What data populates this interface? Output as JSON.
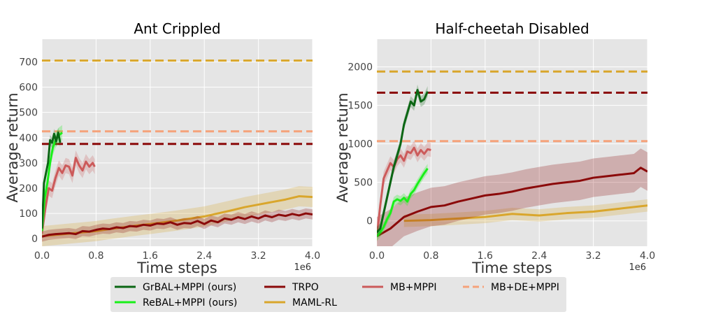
{
  "legend": {
    "entries": [
      {
        "label": "GrBAL+MPPI (ours)",
        "color": "#0b6614",
        "dash": false
      },
      {
        "label": "ReBAL+MPPI (ours)",
        "color": "#19f019",
        "dash": false
      },
      {
        "label": "TRPO",
        "color": "#8b0a0a",
        "dash": false
      },
      {
        "label": "MAML-RL",
        "color": "#d9a62c",
        "dash": false
      },
      {
        "label": "MB+MPPI",
        "color": "#cc5a5a",
        "dash": false
      },
      {
        "label": "MB+DE+MPPI",
        "color": "#f5a27a",
        "dash": true
      }
    ]
  },
  "chart_data": [
    {
      "type": "line",
      "title": "Ant Crippled",
      "xlabel": "Time steps",
      "ylabel": "Average return",
      "x_multiplier": "1e6",
      "xlim": [
        0,
        4.0
      ],
      "ylim": [
        -30,
        790
      ],
      "xticks": [
        "0.0",
        "0.8",
        "1.6",
        "2.4",
        "3.2",
        "4.0"
      ],
      "xtick_values": [
        0,
        0.8,
        1.6,
        2.4,
        3.2,
        4.0
      ],
      "yticks": [
        "0",
        "100",
        "200",
        "300",
        "400",
        "500",
        "600",
        "700"
      ],
      "ytick_values": [
        0,
        100,
        200,
        300,
        400,
        500,
        600,
        700
      ],
      "grid": true,
      "baselines": [
        {
          "name": "MAML-RL",
          "y": 705,
          "color": "#d9a62c"
        },
        {
          "name": "MB+DE+MPPI",
          "y": 425,
          "color": "#f5a27a"
        },
        {
          "name": "TRPO",
          "y": 375,
          "color": "#8b0a0a"
        }
      ],
      "series": [
        {
          "name": "MAML-RL",
          "color": "#d9a62c",
          "band": 40,
          "x": [
            0,
            0.2,
            0.4,
            0.6,
            0.8,
            1.0,
            1.2,
            1.4,
            1.6,
            1.8,
            2.0,
            2.2,
            2.4,
            2.6,
            2.8,
            3.0,
            3.2,
            3.4,
            3.6,
            3.8,
            4.0
          ],
          "y": [
            10,
            15,
            20,
            25,
            30,
            38,
            45,
            52,
            58,
            65,
            72,
            80,
            88,
            100,
            112,
            125,
            135,
            145,
            155,
            168,
            165
          ]
        },
        {
          "name": "TRPO",
          "color": "#8b0a0a",
          "band": 20,
          "x": [
            0,
            0.1,
            0.2,
            0.3,
            0.4,
            0.5,
            0.6,
            0.7,
            0.8,
            0.9,
            1.0,
            1.1,
            1.2,
            1.3,
            1.4,
            1.5,
            1.6,
            1.7,
            1.8,
            1.9,
            2.0,
            2.1,
            2.2,
            2.3,
            2.4,
            2.5,
            2.6,
            2.7,
            2.8,
            2.9,
            3.0,
            3.1,
            3.2,
            3.3,
            3.4,
            3.5,
            3.6,
            3.7,
            3.8,
            3.9,
            4.0
          ],
          "y": [
            8,
            15,
            18,
            20,
            22,
            18,
            30,
            28,
            35,
            40,
            38,
            45,
            42,
            50,
            48,
            55,
            52,
            60,
            58,
            65,
            55,
            62,
            60,
            70,
            58,
            72,
            65,
            80,
            75,
            85,
            78,
            88,
            80,
            92,
            85,
            95,
            90,
            98,
            92,
            100,
            96
          ]
        },
        {
          "name": "MB+MPPI",
          "color": "#cc5a5a",
          "band": 30,
          "x": [
            0,
            0.05,
            0.1,
            0.15,
            0.2,
            0.25,
            0.3,
            0.35,
            0.4,
            0.45,
            0.5,
            0.55,
            0.6,
            0.65,
            0.7,
            0.75,
            0.78
          ],
          "y": [
            20,
            120,
            200,
            190,
            240,
            280,
            260,
            290,
            285,
            250,
            320,
            290,
            270,
            305,
            285,
            300,
            285
          ]
        },
        {
          "name": "ReBAL+MPPI (ours)",
          "color": "#19f019",
          "band": 30,
          "x": [
            0,
            0.04,
            0.08,
            0.12,
            0.16,
            0.2,
            0.25,
            0.3
          ],
          "y": [
            30,
            160,
            220,
            300,
            360,
            390,
            410,
            420
          ]
        },
        {
          "name": "GrBAL+MPPI (ours)",
          "color": "#0b6614",
          "band": 20,
          "x": [
            0,
            0.03,
            0.06,
            0.09,
            0.12,
            0.15,
            0.18,
            0.21,
            0.24,
            0.27
          ],
          "y": [
            40,
            220,
            260,
            300,
            390,
            380,
            415,
            385,
            420,
            380
          ]
        }
      ]
    },
    {
      "type": "line",
      "title": "Half-cheetah Disabled",
      "xlabel": "Time steps",
      "ylabel": "Average return",
      "x_multiplier": "1e6",
      "xlim": [
        0,
        4.0
      ],
      "ylim": [
        -330,
        2360
      ],
      "xticks": [
        "0.0",
        "0.8",
        "1.6",
        "2.4",
        "3.2",
        "4.0"
      ],
      "xtick_values": [
        0,
        0.8,
        1.6,
        2.4,
        3.2,
        4.0
      ],
      "yticks": [
        "0",
        "500",
        "1000",
        "1500",
        "2000"
      ],
      "ytick_values": [
        0,
        500,
        1000,
        1500,
        2000
      ],
      "grid": true,
      "baselines": [
        {
          "name": "MAML-RL",
          "y": 1940,
          "color": "#d9a62c"
        },
        {
          "name": "TRPO",
          "y": 1665,
          "color": "#8b0a0a"
        },
        {
          "name": "MB+DE+MPPI",
          "y": 1035,
          "color": "#f5a27a"
        }
      ],
      "series": [
        {
          "name": "MAML-RL",
          "color": "#d9a62c",
          "band": 80,
          "x": [
            0.4,
            0.8,
            1.2,
            1.6,
            2.0,
            2.4,
            2.8,
            3.2,
            3.6,
            4.0
          ],
          "y": [
            0,
            10,
            30,
            50,
            90,
            70,
            100,
            120,
            160,
            200
          ]
        },
        {
          "name": "TRPO",
          "color": "#8b0a0a",
          "band": 250,
          "x": [
            0,
            0.2,
            0.4,
            0.6,
            0.8,
            1.0,
            1.2,
            1.4,
            1.6,
            1.8,
            2.0,
            2.2,
            2.4,
            2.6,
            2.8,
            3.0,
            3.2,
            3.4,
            3.6,
            3.8,
            3.9,
            4.0
          ],
          "y": [
            -200,
            -100,
            50,
            120,
            180,
            200,
            250,
            290,
            330,
            350,
            380,
            420,
            450,
            480,
            500,
            520,
            560,
            580,
            600,
            620,
            690,
            640
          ]
        },
        {
          "name": "MB+MPPI",
          "color": "#cc5a5a",
          "band": 90,
          "x": [
            0,
            0.05,
            0.1,
            0.15,
            0.2,
            0.25,
            0.3,
            0.35,
            0.4,
            0.45,
            0.5,
            0.55,
            0.6,
            0.65,
            0.7,
            0.75,
            0.8
          ],
          "y": [
            -200,
            200,
            550,
            650,
            750,
            700,
            800,
            850,
            780,
            900,
            880,
            950,
            850,
            920,
            870,
            930,
            920
          ]
        },
        {
          "name": "ReBAL+MPPI (ours)",
          "color": "#19f019",
          "band": 60,
          "x": [
            0,
            0.05,
            0.1,
            0.15,
            0.2,
            0.25,
            0.3,
            0.35,
            0.4,
            0.45,
            0.5,
            0.55,
            0.6,
            0.65,
            0.7,
            0.75
          ],
          "y": [
            -200,
            -150,
            -80,
            20,
            100,
            250,
            280,
            260,
            300,
            250,
            350,
            400,
            480,
            550,
            620,
            680
          ]
        },
        {
          "name": "GrBAL+MPPI (ours)",
          "color": "#0b6614",
          "band": 70,
          "x": [
            0,
            0.05,
            0.1,
            0.15,
            0.2,
            0.25,
            0.3,
            0.35,
            0.4,
            0.45,
            0.5,
            0.55,
            0.6,
            0.65,
            0.7,
            0.75
          ],
          "y": [
            -150,
            -100,
            100,
            300,
            500,
            700,
            850,
            1000,
            1250,
            1400,
            1550,
            1500,
            1700,
            1550,
            1580,
            1680
          ]
        }
      ]
    }
  ]
}
